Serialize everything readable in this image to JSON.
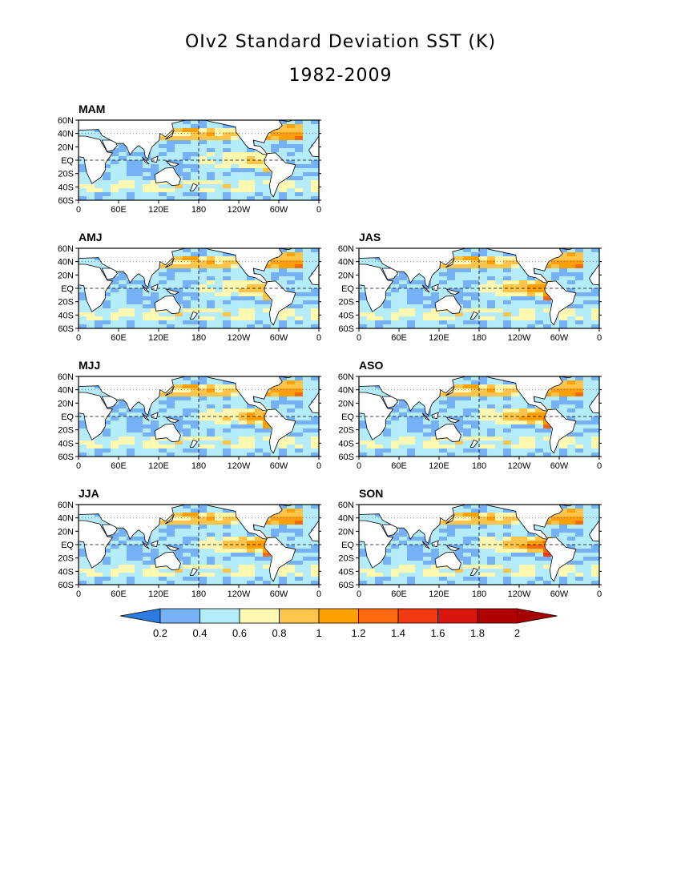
{
  "title_line1": "OIv2 Standard Deviation SST (K)",
  "title_line2": "1982-2009",
  "lat_ticks": [
    "60N",
    "40N",
    "20N",
    "EQ",
    "20S",
    "40S",
    "60S"
  ],
  "lon_ticks": [
    "0",
    "60E",
    "120E",
    "180",
    "120W",
    "60W",
    "0"
  ],
  "panels": [
    {
      "label": "MAM",
      "col": 0,
      "row": 0,
      "tropic_peak": 0.9
    },
    {
      "label": "AMJ",
      "col": 0,
      "row": 1,
      "tropic_peak": 1.0
    },
    {
      "label": "JAS",
      "col": 1,
      "row": 1,
      "tropic_peak": 1.3
    },
    {
      "label": "MJJ",
      "col": 0,
      "row": 2,
      "tropic_peak": 1.2
    },
    {
      "label": "ASO",
      "col": 1,
      "row": 2,
      "tropic_peak": 1.4
    },
    {
      "label": "JJA",
      "col": 0,
      "row": 3,
      "tropic_peak": 1.3
    },
    {
      "label": "SON",
      "col": 1,
      "row": 3,
      "tropic_peak": 1.5
    }
  ],
  "colorbar": {
    "levels": [
      "0.2",
      "0.4",
      "0.6",
      "0.8",
      "1",
      "1.2",
      "1.4",
      "1.6",
      "1.8",
      "2"
    ],
    "colors": [
      "#2b7be0",
      "#76b0f5",
      "#b4ecf9",
      "#fff8b0",
      "#ffc54a",
      "#ff9f00",
      "#ff6a10",
      "#f23a12",
      "#d9160e",
      "#b00000",
      "#a60000"
    ]
  }
}
